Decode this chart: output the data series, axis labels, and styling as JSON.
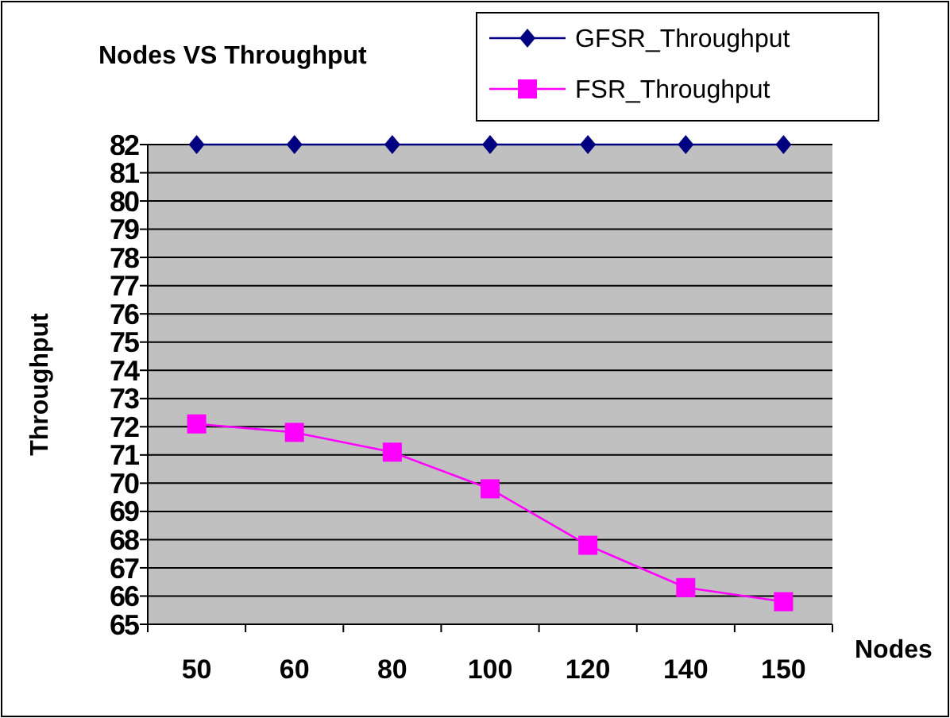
{
  "chart_data": {
    "type": "line",
    "title": "Nodes VS Throughput",
    "xlabel": "Nodes",
    "ylabel": "Throughput",
    "categories": [
      "50",
      "60",
      "80",
      "100",
      "120",
      "140",
      "150"
    ],
    "series": [
      {
        "name": "GFSR_Throughput",
        "color": "#000080",
        "marker": "diamond",
        "values": [
          82,
          82,
          82,
          82,
          82,
          82,
          82
        ]
      },
      {
        "name": "FSR_Throughput",
        "color": "#ff00ff",
        "marker": "square",
        "values": [
          72.1,
          71.8,
          71.1,
          69.8,
          67.8,
          66.3,
          65.8
        ]
      }
    ],
    "ylim": [
      65,
      82
    ],
    "yticks": [
      65,
      66,
      67,
      68,
      69,
      70,
      71,
      72,
      73,
      74,
      75,
      76,
      77,
      78,
      79,
      80,
      81,
      82
    ],
    "grid": "y",
    "legend": "top right"
  }
}
